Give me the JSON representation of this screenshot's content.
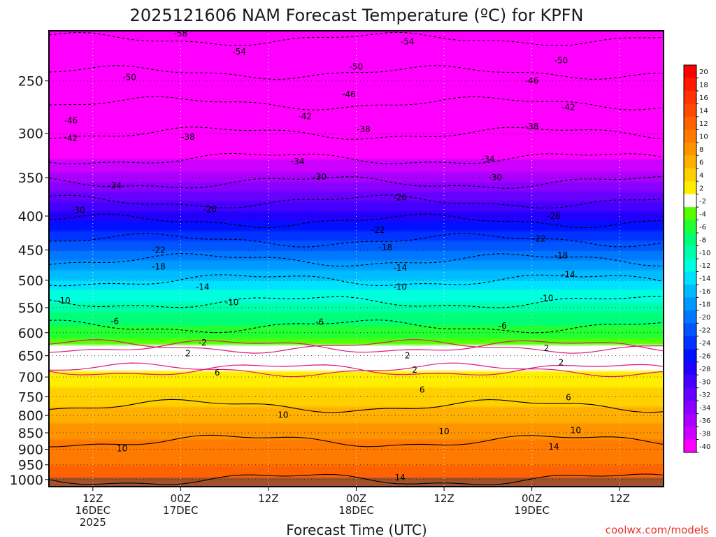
{
  "chart_data": {
    "type": "heatmap",
    "title": "2025121606 NAM Forecast Temperature (ºC) for KPFN",
    "xlabel": "Forecast Time (UTC)",
    "ylabel": "",
    "credit": "coolwx.com/models",
    "y_axis": {
      "scale": "log",
      "range": [
        1025,
        210
      ],
      "ticks": [
        250,
        300,
        350,
        400,
        450,
        500,
        550,
        600,
        650,
        700,
        750,
        800,
        850,
        900,
        950,
        1000
      ],
      "unit": "hPa"
    },
    "x_axis": {
      "range_hours": [
        0,
        84
      ],
      "ticks": [
        {
          "hour": 6,
          "line1": "12Z",
          "line2": "16DEC",
          "line3": "2025"
        },
        {
          "hour": 18,
          "line1": "00Z",
          "line2": "17DEC",
          "line3": ""
        },
        {
          "hour": 30,
          "line1": "12Z",
          "line2": "",
          "line3": ""
        },
        {
          "hour": 42,
          "line1": "00Z",
          "line2": "18DEC",
          "line3": ""
        },
        {
          "hour": 54,
          "line1": "12Z",
          "line2": "",
          "line3": ""
        },
        {
          "hour": 66,
          "line1": "00Z",
          "line2": "19DEC",
          "line3": ""
        },
        {
          "hour": 78,
          "line1": "12Z",
          "line2": "",
          "line3": ""
        }
      ]
    },
    "grid": "dotted",
    "legend": "colorbar-right",
    "colorbar": {
      "labels": [
        "20",
        "18",
        "16",
        "14",
        "12",
        "10",
        "8",
        "6",
        "4",
        "2",
        "-2",
        "-4",
        "-6",
        "-8",
        "-10",
        "-12",
        "-14",
        "-16",
        "-18",
        "-20",
        "-22",
        "-24",
        "-26",
        "-28",
        "-30",
        "-32",
        "-34",
        "-36",
        "-38",
        "-40"
      ],
      "colors": [
        "#ff0000",
        "#ff1a00",
        "#ff3300",
        "#ff4800",
        "#ff6200",
        "#ff7a00",
        "#ff9400",
        "#ffb000",
        "#ffd000",
        "#ffee00",
        "#ffffff",
        "#55ff00",
        "#22ff33",
        "#00ff77",
        "#00ffaa",
        "#00ffdd",
        "#00e0ff",
        "#00bbff",
        "#0099ff",
        "#0077ff",
        "#0055ff",
        "#0033ff",
        "#0011ff",
        "#2200ff",
        "#4400ff",
        "#6600ff",
        "#8800ff",
        "#aa00ff",
        "#cc00ff",
        "#ff00ff"
      ]
    },
    "profile": {
      "pressure": [
        1000,
        950,
        900,
        850,
        800,
        750,
        700,
        650,
        600,
        550,
        500,
        450,
        400,
        350,
        300,
        250,
        210
      ],
      "temperature": [
        14,
        12,
        11,
        9,
        7,
        5,
        3,
        0,
        -5,
        -9,
        -14,
        -20,
        -27,
        -35,
        -42,
        -49,
        -55
      ]
    },
    "contour_labels": [
      {
        "text": "-58",
        "hour": 18,
        "p": 212
      },
      {
        "text": "-54",
        "hour": 26,
        "p": 226
      },
      {
        "text": "-54",
        "hour": 49,
        "p": 218
      },
      {
        "text": "-50",
        "hour": 11,
        "p": 247
      },
      {
        "text": "-50",
        "hour": 42,
        "p": 238
      },
      {
        "text": "-50",
        "hour": 70,
        "p": 233
      },
      {
        "text": "-46",
        "hour": 3,
        "p": 287
      },
      {
        "text": "-46",
        "hour": 41,
        "p": 262
      },
      {
        "text": "-46",
        "hour": 66,
        "p": 250
      },
      {
        "text": "-42",
        "hour": 3,
        "p": 305
      },
      {
        "text": "-42",
        "hour": 35,
        "p": 283
      },
      {
        "text": "-42",
        "hour": 71,
        "p": 274
      },
      {
        "text": "-38",
        "hour": 19,
        "p": 304
      },
      {
        "text": "-38",
        "hour": 43,
        "p": 296
      },
      {
        "text": "-38",
        "hour": 66,
        "p": 293
      },
      {
        "text": "-34",
        "hour": 9,
        "p": 360
      },
      {
        "text": "-34",
        "hour": 34,
        "p": 331
      },
      {
        "text": "-34",
        "hour": 60,
        "p": 328
      },
      {
        "text": "-30",
        "hour": 4,
        "p": 392
      },
      {
        "text": "-30",
        "hour": 37,
        "p": 349
      },
      {
        "text": "-30",
        "hour": 61,
        "p": 350
      },
      {
        "text": "-26",
        "hour": 22,
        "p": 391
      },
      {
        "text": "-26",
        "hour": 48,
        "p": 375
      },
      {
        "text": "-26",
        "hour": 69,
        "p": 400
      },
      {
        "text": "-22",
        "hour": 15,
        "p": 450
      },
      {
        "text": "-22",
        "hour": 45,
        "p": 420
      },
      {
        "text": "-22",
        "hour": 67,
        "p": 433
      },
      {
        "text": "-18",
        "hour": 15,
        "p": 477
      },
      {
        "text": "-18",
        "hour": 46,
        "p": 446
      },
      {
        "text": "-18",
        "hour": 70,
        "p": 459
      },
      {
        "text": "-14",
        "hour": 21,
        "p": 512
      },
      {
        "text": "-14",
        "hour": 48,
        "p": 479
      },
      {
        "text": "-14",
        "hour": 71,
        "p": 490
      },
      {
        "text": "-10",
        "hour": 2,
        "p": 537
      },
      {
        "text": "-10",
        "hour": 25,
        "p": 540
      },
      {
        "text": "-10",
        "hour": 48,
        "p": 512
      },
      {
        "text": "-10",
        "hour": 68,
        "p": 532
      },
      {
        "text": "-6",
        "hour": 9,
        "p": 577
      },
      {
        "text": "-6",
        "hour": 37,
        "p": 578
      },
      {
        "text": "-6",
        "hour": 62,
        "p": 586
      },
      {
        "text": "-2",
        "hour": 21,
        "p": 621
      },
      {
        "text": "2",
        "hour": 19,
        "p": 645
      },
      {
        "text": "2",
        "hour": 49,
        "p": 650
      },
      {
        "text": "2",
        "hour": 50,
        "p": 683
      },
      {
        "text": "2",
        "hour": 68,
        "p": 633
      },
      {
        "text": "2",
        "hour": 70,
        "p": 666
      },
      {
        "text": "6",
        "hour": 23,
        "p": 690
      },
      {
        "text": "6",
        "hour": 51,
        "p": 732
      },
      {
        "text": "6",
        "hour": 71,
        "p": 752
      },
      {
        "text": "10",
        "hour": 32,
        "p": 799
      },
      {
        "text": "10",
        "hour": 54,
        "p": 846
      },
      {
        "text": "10",
        "hour": 72,
        "p": 843
      },
      {
        "text": "10",
        "hour": 10,
        "p": 898
      },
      {
        "text": "14",
        "hour": 69,
        "p": 892
      },
      {
        "text": "14",
        "hour": 48,
        "p": 993
      }
    ]
  }
}
